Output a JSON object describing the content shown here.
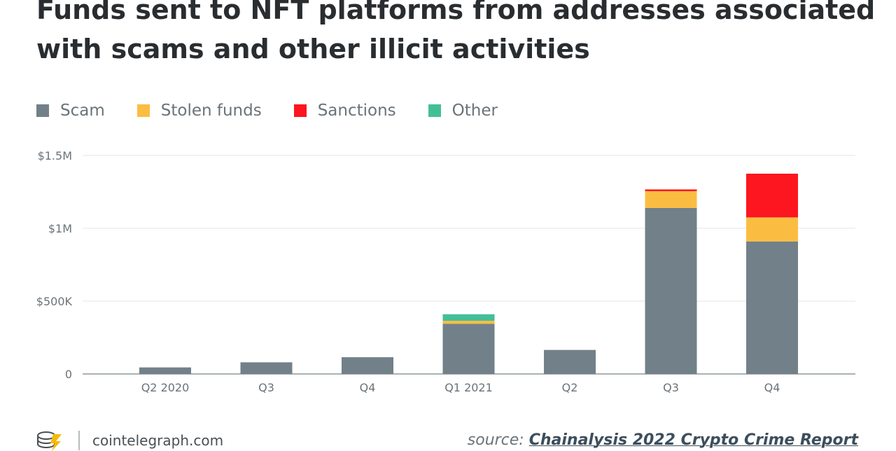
{
  "chart_data": {
    "type": "bar",
    "stacked": true,
    "title": "Funds sent to NFT platforms from addresses associated with scams and other illicit activities",
    "categories": [
      "Q2 2020",
      "Q3",
      "Q4",
      "Q1 2021",
      "Q2",
      "Q3",
      "Q4"
    ],
    "series": [
      {
        "name": "Scam",
        "color": "#728089",
        "values": [
          45000,
          80000,
          115000,
          345000,
          165000,
          1140000,
          910000
        ]
      },
      {
        "name": "Stolen funds",
        "color": "#fbbd41",
        "values": [
          0,
          0,
          0,
          20000,
          0,
          115000,
          165000
        ]
      },
      {
        "name": "Sanctions",
        "color": "#fd1520",
        "values": [
          0,
          0,
          0,
          0,
          0,
          12000,
          300000
        ]
      },
      {
        "name": "Other",
        "color": "#43bf98",
        "values": [
          0,
          0,
          0,
          45000,
          0,
          0,
          0
        ]
      }
    ],
    "ylim": [
      0,
      1500000
    ],
    "yticks": [
      {
        "value": 0,
        "label": "0"
      },
      {
        "value": 500000,
        "label": "$500K"
      },
      {
        "value": 1000000,
        "label": "$1M"
      },
      {
        "value": 1500000,
        "label": "$1.5M"
      }
    ],
    "xlabel": "",
    "ylabel": "",
    "grid": true,
    "legend_position": "top-left"
  },
  "title_lines": [
    "Funds sent to NFT platforms from addresses associated",
    "with scams and other illicit activities"
  ],
  "footer": {
    "brand": "cointelegraph.com",
    "source_prefix": "source: ",
    "source_name": "Chainalysis 2022 Crypto Crime Report"
  },
  "colors": {
    "title": "#2a2d30",
    "axis_text": "#6b7378",
    "grid": "#e3e5e6",
    "logo": "#f5b90a"
  }
}
